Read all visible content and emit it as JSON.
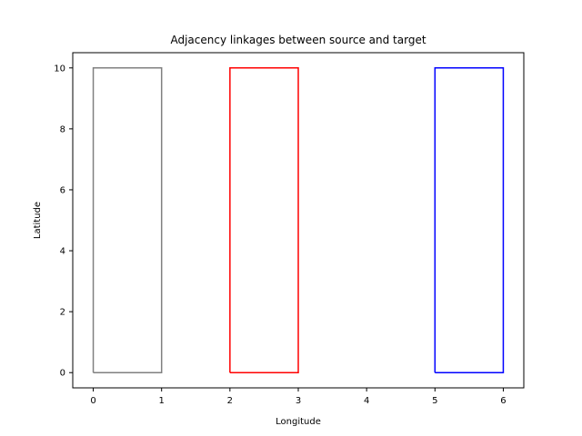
{
  "chart_data": {
    "type": "polygon",
    "title": "Adjacency linkages between source and target",
    "xlabel": "Longitude",
    "ylabel": "Latitude",
    "xlim": [
      -0.3,
      6.3
    ],
    "ylim": [
      -0.5,
      10.5
    ],
    "xticks": [
      0,
      1,
      2,
      3,
      4,
      5,
      6
    ],
    "yticks": [
      0,
      2,
      4,
      6,
      8,
      10
    ],
    "grid": false,
    "legend": "none",
    "series": [
      {
        "color": "#808080",
        "x": [
          0,
          1,
          1,
          0,
          0
        ],
        "y": [
          0,
          0,
          10,
          10,
          0
        ]
      },
      {
        "color": "#ff0000",
        "x": [
          2,
          3,
          3,
          2,
          2
        ],
        "y": [
          0,
          0,
          10,
          10,
          0
        ]
      },
      {
        "color": "#0000ff",
        "x": [
          5,
          6,
          6,
          5,
          5
        ],
        "y": [
          0,
          0,
          10,
          10,
          0
        ]
      }
    ]
  }
}
